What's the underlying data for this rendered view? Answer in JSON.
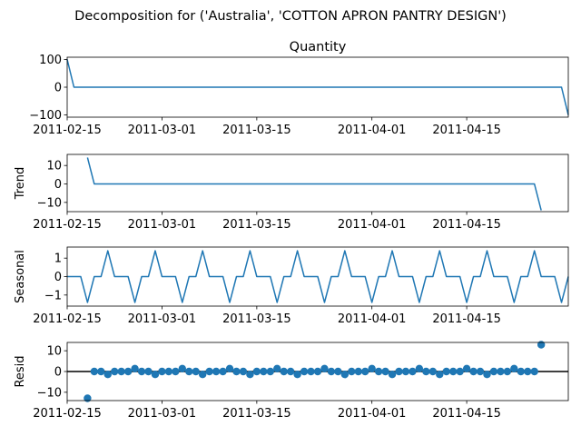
{
  "figure_title": "Decomposition for ('Australia', 'COTTON APRON PANTRY DESIGN')",
  "chart_data": [
    {
      "type": "line",
      "title": "Quantity",
      "ylabel": "",
      "x": {
        "start": "2011-02-15",
        "end": "2011-04-30",
        "step_days": 1
      },
      "ylim": [
        -108,
        108
      ],
      "yticks": [
        100,
        0,
        -100
      ],
      "xticks": [
        "2011-02-15",
        "2011-03-01",
        "2011-03-15",
        "2011-04-01",
        "2011-04-15"
      ],
      "series": [
        {
          "color": "#1f77b4",
          "values": [
            100,
            0,
            0,
            0,
            0,
            0,
            0,
            0,
            0,
            0,
            0,
            0,
            0,
            0,
            0,
            0,
            0,
            0,
            0,
            0,
            0,
            0,
            0,
            0,
            0,
            0,
            0,
            0,
            0,
            0,
            0,
            0,
            0,
            0,
            0,
            0,
            0,
            0,
            0,
            0,
            0,
            0,
            0,
            0,
            0,
            0,
            0,
            0,
            0,
            0,
            0,
            0,
            0,
            0,
            0,
            0,
            0,
            0,
            0,
            0,
            0,
            0,
            0,
            0,
            0,
            0,
            0,
            0,
            0,
            0,
            0,
            0,
            0,
            0,
            -100
          ]
        }
      ]
    },
    {
      "type": "line",
      "title": "",
      "ylabel": "Trend",
      "x": {
        "start": "2011-02-18",
        "end": "2011-04-27",
        "step_days": 1
      },
      "ylim": [
        -15,
        16
      ],
      "yticks": [
        10,
        0,
        -10
      ],
      "xticks": [
        "2011-02-15",
        "2011-03-01",
        "2011-03-15",
        "2011-04-01",
        "2011-04-15"
      ],
      "series": [
        {
          "color": "#1f77b4",
          "values": [
            14.3,
            0,
            0,
            0,
            0,
            0,
            0,
            0,
            0,
            0,
            0,
            0,
            0,
            0,
            0,
            0,
            0,
            0,
            0,
            0,
            0,
            0,
            0,
            0,
            0,
            0,
            0,
            0,
            0,
            0,
            0,
            0,
            0,
            0,
            0,
            0,
            0,
            0,
            0,
            0,
            0,
            0,
            0,
            0,
            0,
            0,
            0,
            0,
            0,
            0,
            0,
            0,
            0,
            0,
            0,
            0,
            0,
            0,
            0,
            0,
            0,
            0,
            0,
            0,
            0,
            0,
            0,
            -14.3
          ]
        }
      ]
    },
    {
      "type": "line",
      "title": "",
      "ylabel": "Seasonal",
      "x": {
        "start": "2011-02-15",
        "end": "2011-04-30",
        "step_days": 1
      },
      "ylim": [
        -1.6,
        1.6
      ],
      "yticks": [
        1,
        0,
        -1
      ],
      "xticks": [
        "2011-02-15",
        "2011-03-01",
        "2011-03-15",
        "2011-04-01",
        "2011-04-15"
      ],
      "series": [
        {
          "color": "#1f77b4",
          "values": [
            0,
            0,
            0,
            -1.4,
            0,
            0,
            1.4,
            0,
            0,
            0,
            -1.4,
            0,
            0,
            1.4,
            0,
            0,
            0,
            -1.4,
            0,
            0,
            1.4,
            0,
            0,
            0,
            -1.4,
            0,
            0,
            1.4,
            0,
            0,
            0,
            -1.4,
            0,
            0,
            1.4,
            0,
            0,
            0,
            -1.4,
            0,
            0,
            1.4,
            0,
            0,
            0,
            -1.4,
            0,
            0,
            1.4,
            0,
            0,
            0,
            -1.4,
            0,
            0,
            1.4,
            0,
            0,
            0,
            -1.4,
            0,
            0,
            1.4,
            0,
            0,
            0,
            -1.4,
            0,
            0,
            1.4,
            0,
            0,
            0,
            -1.4,
            0
          ]
        }
      ]
    },
    {
      "type": "scatter",
      "title": "",
      "ylabel": "Resid",
      "x": {
        "start": "2011-02-18",
        "end": "2011-04-27",
        "step_days": 1
      },
      "ylim": [
        -14,
        14
      ],
      "yticks": [
        10,
        0,
        -10
      ],
      "xticks": [
        "2011-02-15",
        "2011-03-01",
        "2011-03-15",
        "2011-04-01",
        "2011-04-15"
      ],
      "zero_line": true,
      "series": [
        {
          "color": "#1f77b4",
          "values": [
            -12.9,
            0,
            0,
            -1.4,
            0,
            0,
            0,
            1.4,
            0,
            0,
            -1.4,
            0,
            0,
            0,
            1.4,
            0,
            0,
            -1.4,
            0,
            0,
            0,
            1.4,
            0,
            0,
            -1.4,
            0,
            0,
            0,
            1.4,
            0,
            0,
            -1.4,
            0,
            0,
            0,
            1.4,
            0,
            0,
            -1.4,
            0,
            0,
            0,
            1.4,
            0,
            0,
            -1.4,
            0,
            0,
            0,
            1.4,
            0,
            0,
            -1.4,
            0,
            0,
            0,
            1.4,
            0,
            0,
            -1.4,
            0,
            0,
            0,
            1.4,
            0,
            0,
            0,
            12.9
          ]
        }
      ]
    }
  ]
}
